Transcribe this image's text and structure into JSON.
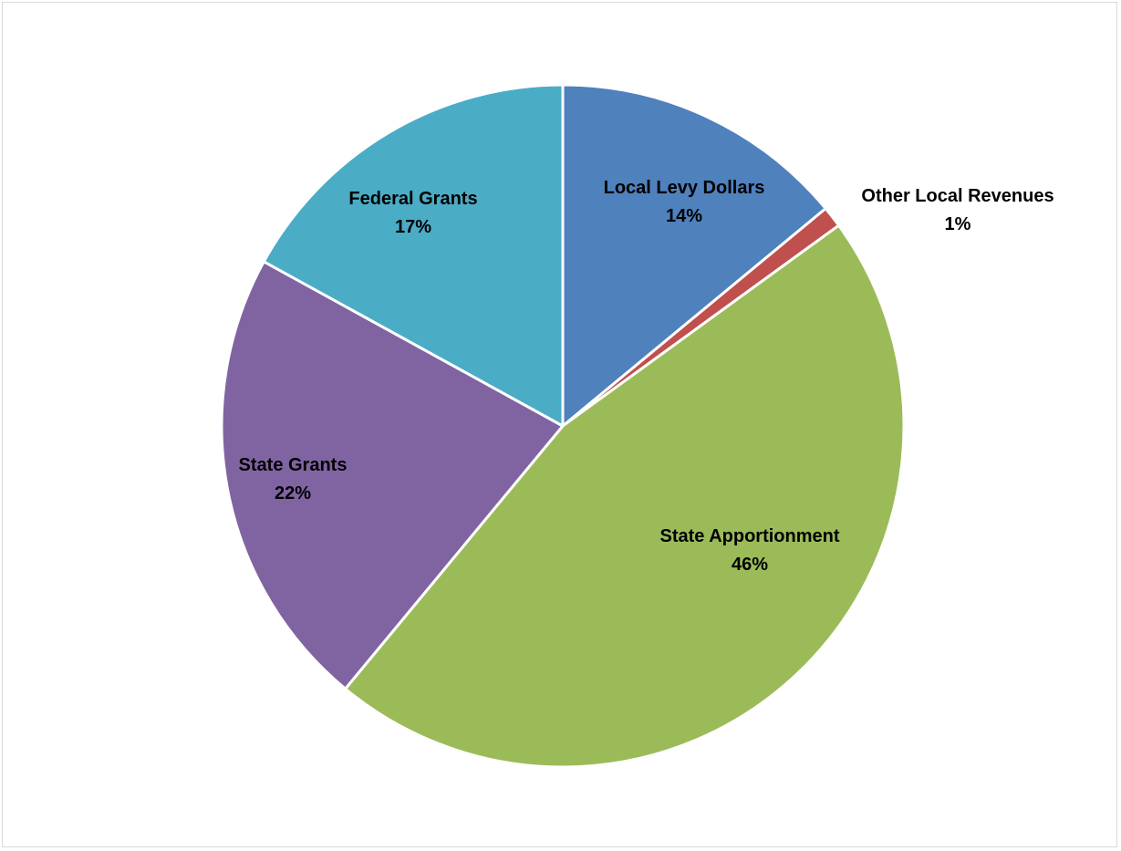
{
  "chart_data": {
    "type": "pie",
    "title": "",
    "slices": [
      {
        "label": "Local Levy Dollars",
        "value": 14,
        "value_label": "14%",
        "color": "#4F81BD"
      },
      {
        "label": "Other Local Revenues",
        "value": 1,
        "value_label": "1%",
        "color": "#C0504D"
      },
      {
        "label": "State Apportionment",
        "value": 46,
        "value_label": "46%",
        "color": "#9BBB59"
      },
      {
        "label": "State Grants",
        "value": 22,
        "value_label": "22%",
        "color": "#8064A2"
      },
      {
        "label": "Federal Grants",
        "value": 17,
        "value_label": "17%",
        "color": "#4BACC6"
      }
    ],
    "start_angle_deg": 0,
    "direction": "clockwise",
    "legend": "none",
    "data_labels": "category and percentage"
  }
}
